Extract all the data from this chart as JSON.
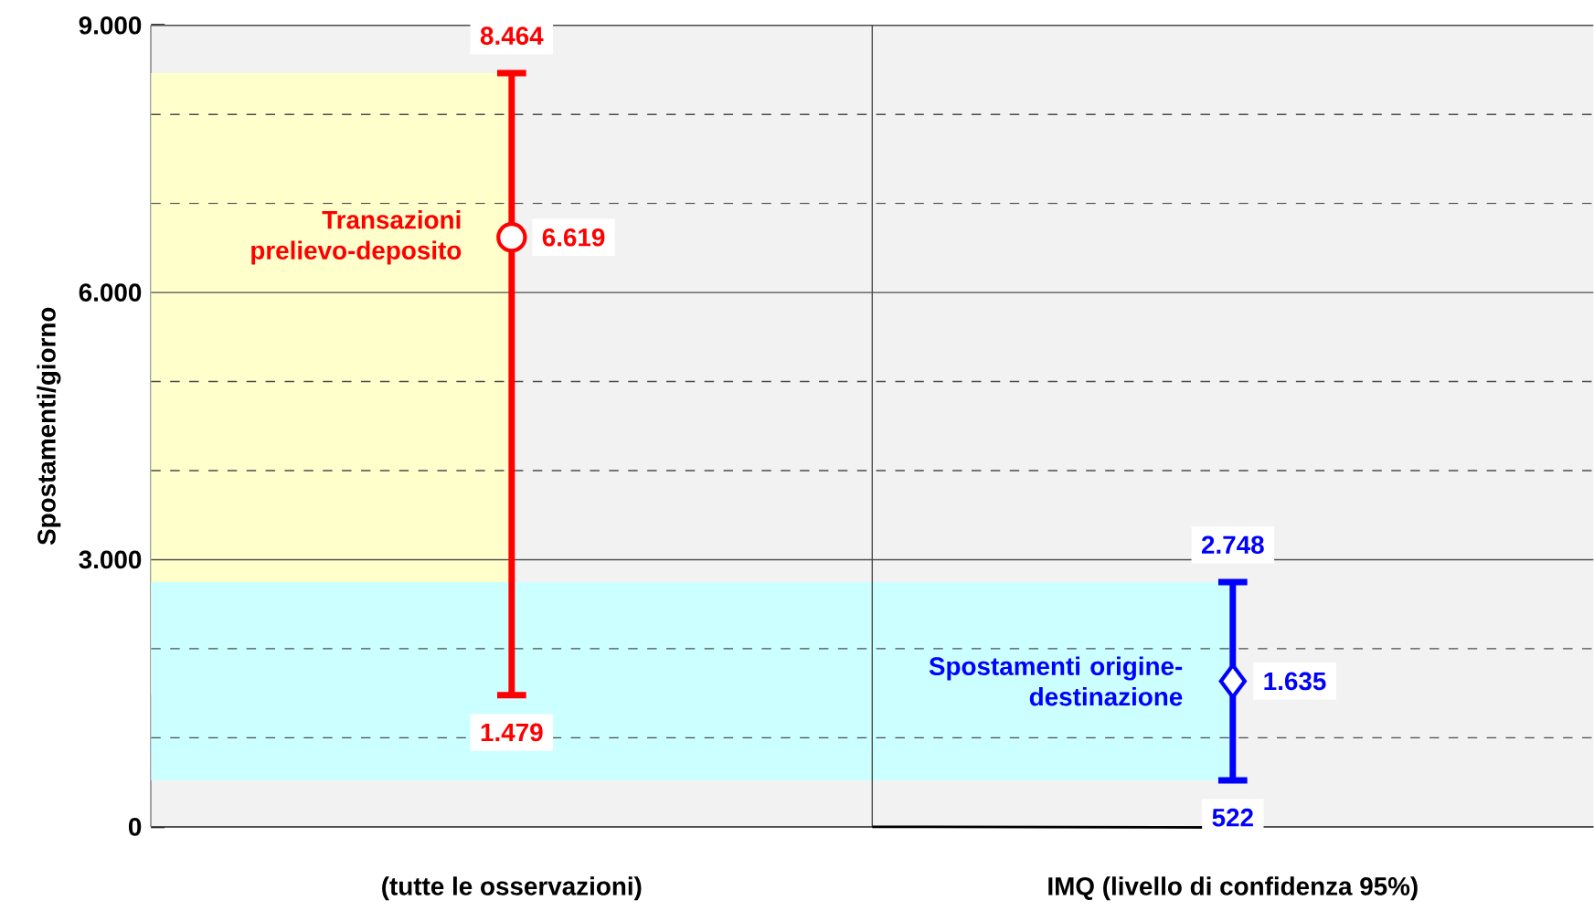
{
  "chart_data": {
    "type": "scatter",
    "ylabel": "Spostamenti/giorno",
    "categories": [
      "(tutte le osservazioni)",
      "IMQ (livello di confidenza 95%)"
    ],
    "ylim": [
      0,
      9000
    ],
    "yticks": [
      0,
      {
        "value": 1000,
        "label": null
      },
      {
        "value": 2000,
        "label": null
      },
      {
        "value": 3000,
        "label": "3.000"
      },
      {
        "value": 4000,
        "label": null
      },
      {
        "value": 5000,
        "label": null
      },
      {
        "value": 6000,
        "label": "6.000"
      },
      {
        "value": 7000,
        "label": null
      },
      {
        "value": 8000,
        "label": null
      },
      {
        "value": 9000,
        "label": "9.000"
      }
    ],
    "grid": true,
    "series": [
      {
        "name": "Transazioni prelievo-deposito",
        "color": "#ff0000",
        "marker": "circle",
        "values": [
          6619,
          null
        ],
        "errors": [
          [
            1479,
            8464
          ],
          null
        ],
        "value_labels": [
          "6.619",
          null
        ]
      },
      {
        "name": "Spostamenti origine-destinazione",
        "color": "#0000ff",
        "marker": "diamond",
        "values": [
          null,
          1635
        ],
        "errors": [
          null,
          [
            522,
            2748
          ]
        ],
        "value_labels": [
          null,
          "1.635"
        ]
      }
    ],
    "bands": [
      {
        "axis": "y",
        "from": 1479,
        "to": 8464,
        "color": "#ffffcc"
      },
      {
        "axis": "y",
        "from": 522,
        "to": 2748,
        "color": "#ccffff"
      }
    ],
    "annotations": [
      {
        "text": "8.464",
        "x": "(tutte le osservazioni)",
        "y": 8464
      },
      {
        "text": "1.479",
        "x": "(tutte le osservazioni)",
        "y": 1479
      },
      {
        "text": "2.748",
        "x": "IMQ (livello di confidenza 95%)",
        "y": 2748
      },
      {
        "text": "522",
        "x": "IMQ (livello di confidenza 95%)",
        "y": 522
      }
    ]
  }
}
